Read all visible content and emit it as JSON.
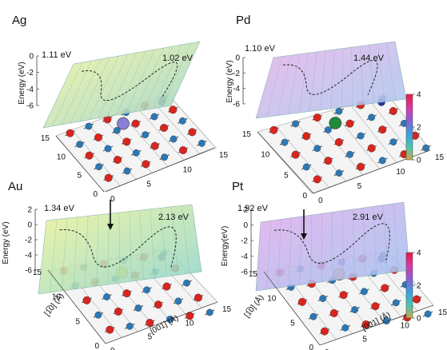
{
  "chart_data": {
    "type": "surface",
    "colors": {
      "atom_red": "#d8251e",
      "atom_blue": "#2a78b6",
      "atom_navy": "#2435a0",
      "atom_ag": "#8a80d8",
      "atom_pd": "#1f8a3a",
      "atom_au": "#e8d21c",
      "atom_pt": "#c89a22"
    },
    "panels": [
      {
        "id": "ag",
        "title": "Ag",
        "barriers": [
          "1.11 eV",
          "1.02 eV"
        ],
        "zlabel": "Energy (eV)",
        "zticks": [
          "0",
          "-2",
          "-4",
          "-6"
        ],
        "xticks": [
          "0",
          "5",
          "10",
          "15"
        ],
        "yticks": [
          "0",
          "5",
          "10",
          "15"
        ],
        "xlabel": "",
        "ylabel": "",
        "surface_colors": [
          "#f3f5a0",
          "#9bd2c8"
        ],
        "metal_color": "#8a80d8",
        "arrow": false
      },
      {
        "id": "pd",
        "title": "Pd",
        "barriers": [
          "1.10 eV",
          "1.44 eV"
        ],
        "zlabel": "Energy (eV)",
        "zticks": [
          "0",
          "-2",
          "-4",
          "-6"
        ],
        "xticks": [
          "0",
          "5",
          "10",
          "15"
        ],
        "yticks": [
          "0",
          "5",
          "10",
          "15"
        ],
        "xlabel": "",
        "ylabel": "",
        "surface_colors": [
          "#e9b4ea",
          "#a9c8ee"
        ],
        "metal_color": "#1f8a3a",
        "arrow": false
      },
      {
        "id": "au",
        "title": "Au",
        "barriers": [
          "1.34 eV",
          "2.13 eV"
        ],
        "zlabel": "Energy (eV)",
        "zticks": [
          "2",
          "0",
          "-2",
          "-4",
          "-6"
        ],
        "xticks": [
          "0",
          "5",
          "10",
          "15"
        ],
        "yticks": [
          "0",
          "5",
          "10",
          "15"
        ],
        "xlabel": "[001] (Å)",
        "ylabel": "[1̅0] (Å)",
        "surface_colors": [
          "#eef49a",
          "#8ed4cf"
        ],
        "metal_color": "#e8d21c",
        "arrow": true
      },
      {
        "id": "pt",
        "title": "Pt",
        "barriers": [
          "1.92 eV",
          "2.91 eV"
        ],
        "zlabel": "Energy(eV)",
        "zticks": [
          "2",
          "0",
          "-2",
          "-4",
          "-6"
        ],
        "xticks": [
          "0",
          "5",
          "10",
          "15"
        ],
        "yticks": [
          "0",
          "5",
          "10",
          "15"
        ],
        "xlabel": "[001] (Å)",
        "ylabel": "[1̅0] (Å)",
        "surface_colors": [
          "#e6acec",
          "#9fc4f0"
        ],
        "metal_color": "#c89a22",
        "arrow": true
      }
    ],
    "colorbars": [
      {
        "ticks": [
          "4",
          "2",
          "0"
        ],
        "colors": [
          "#e8193e",
          "#d63aa8",
          "#8d5fd0",
          "#3a9fe0",
          "#49c4b4",
          "#c9a84a"
        ]
      },
      {
        "ticks": [
          "4",
          "2",
          "0"
        ],
        "colors": [
          "#e8193e",
          "#d63aa8",
          "#8d5fd0",
          "#3a9fe0",
          "#49c4b4",
          "#c9a84a"
        ]
      }
    ]
  }
}
